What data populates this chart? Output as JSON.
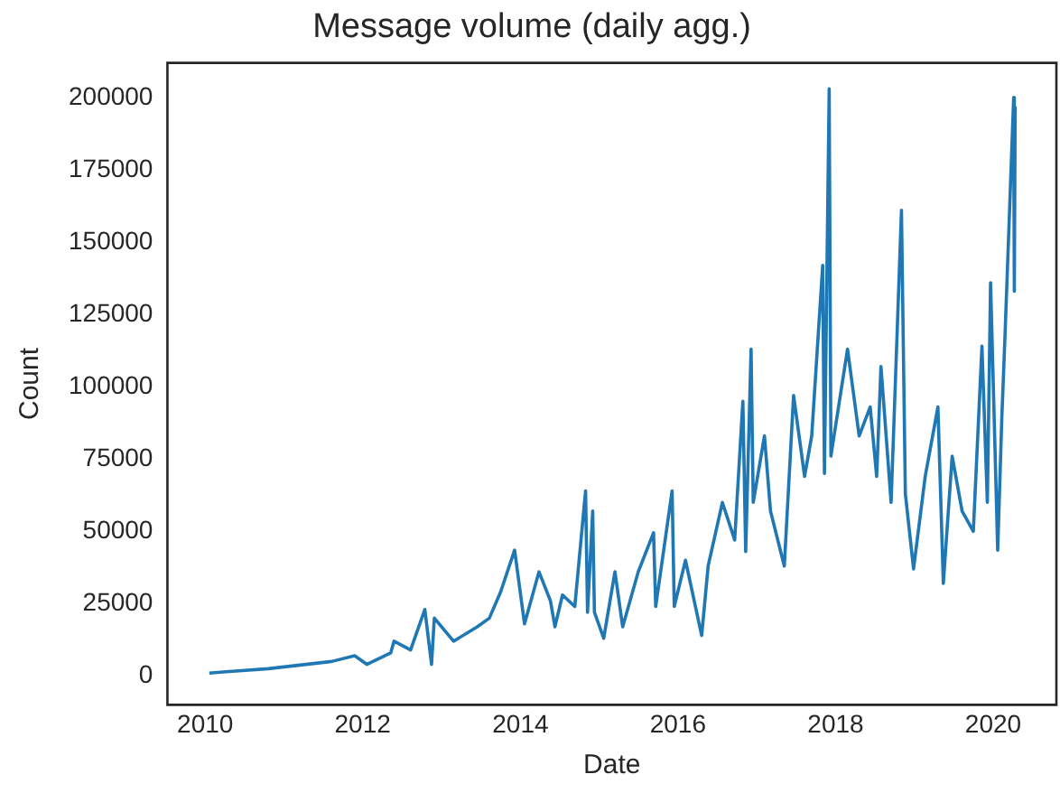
{
  "chart_data": {
    "type": "line",
    "title": "Message volume (daily agg.)",
    "xlabel": "Date",
    "ylabel": "Count",
    "x": [
      "2010-01-20",
      "2010-04-20",
      "2010-10-20",
      "2011-08-10",
      "2011-11-25",
      "2012-01-20",
      "2012-05-10",
      "2012-05-25",
      "2012-08-10",
      "2012-10-15",
      "2012-11-15",
      "2012-11-28",
      "2013-02-25",
      "2013-06-15",
      "2013-08-10",
      "2013-10-01",
      "2013-12-05",
      "2014-01-20",
      "2014-03-28",
      "2014-05-20",
      "2014-06-10",
      "2014-07-15",
      "2014-09-10",
      "2014-10-30",
      "2014-11-08",
      "2014-12-02",
      "2014-12-10",
      "2015-01-22",
      "2015-03-15",
      "2015-04-20",
      "2015-07-01",
      "2015-09-10",
      "2015-09-20",
      "2015-12-05",
      "2015-12-15",
      "2016-02-05",
      "2016-04-20",
      "2016-05-20",
      "2016-07-25",
      "2016-09-20",
      "2016-10-28",
      "2016-11-10",
      "2016-12-05",
      "2016-12-15",
      "2017-02-05",
      "2017-03-05",
      "2017-05-08",
      "2017-06-20",
      "2017-08-10",
      "2017-09-12",
      "2017-11-02",
      "2017-11-10",
      "2017-12-02",
      "2017-12-10",
      "2018-02-25",
      "2018-04-20",
      "2018-06-10",
      "2018-07-10",
      "2018-07-30",
      "2018-09-15",
      "2018-11-02",
      "2018-11-20",
      "2018-12-28",
      "2019-02-20",
      "2019-04-20",
      "2019-05-15",
      "2019-06-25",
      "2019-08-10",
      "2019-10-01",
      "2019-11-10",
      "2019-12-05",
      "2019-12-20",
      "2020-01-22",
      "2020-02-10",
      "2020-02-25",
      "2020-04-05",
      "2020-04-08",
      "2020-04-12"
    ],
    "series": [
      {
        "color": "#1f77b4",
        "values": [
          1000,
          1500,
          2500,
          5000,
          7000,
          4000,
          8000,
          12000,
          9000,
          23000,
          4000,
          20000,
          12000,
          17000,
          20000,
          29000,
          43500,
          18000,
          36000,
          26000,
          17000,
          28000,
          24000,
          64000,
          22000,
          57000,
          22000,
          13000,
          36000,
          17000,
          36000,
          49500,
          24000,
          64000,
          24000,
          40000,
          14000,
          38000,
          60000,
          47000,
          95000,
          43000,
          113000,
          60000,
          83000,
          57000,
          38000,
          97000,
          69000,
          83000,
          142000,
          70000,
          203000,
          76000,
          113000,
          83000,
          93000,
          69000,
          107000,
          60000,
          161000,
          63000,
          37000,
          69000,
          93000,
          32000,
          76000,
          57000,
          50000,
          114000,
          60000,
          136000,
          43500,
          89000,
          118000,
          200000,
          133000,
          197000
        ]
      }
    ],
    "xlim": [
      "2009-07-10",
      "2020-10-20"
    ],
    "xticks": [
      "2010",
      "2012",
      "2014",
      "2016",
      "2018",
      "2020"
    ],
    "ylim": [
      -10000,
      212000
    ],
    "yticks": [
      0,
      25000,
      50000,
      75000,
      100000,
      125000,
      150000,
      175000,
      200000
    ],
    "grid": false,
    "legend": false,
    "marker": "none",
    "line_style": "solid"
  }
}
